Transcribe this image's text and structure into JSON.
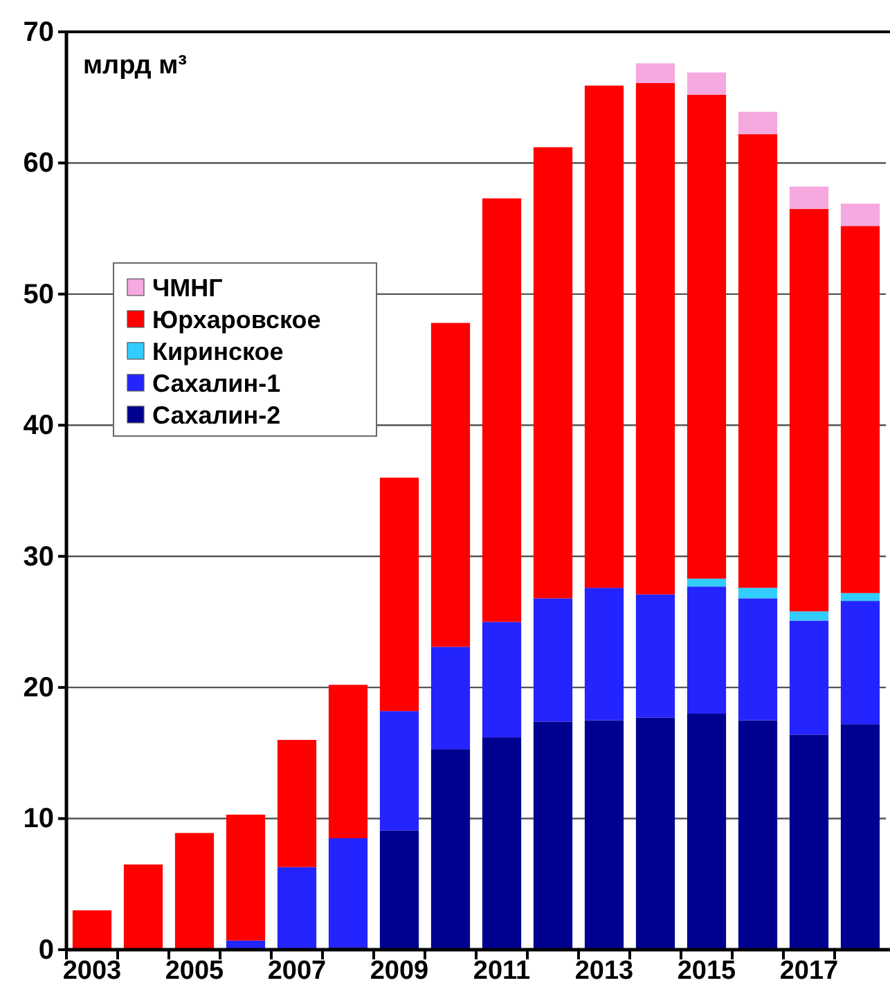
{
  "chart_data": {
    "type": "bar",
    "stacked": true,
    "ylabel": "млрд м³",
    "categories": [
      "2003",
      null,
      "2005",
      null,
      "2007",
      null,
      "2009",
      null,
      "2011",
      null,
      "2013",
      null,
      "2015",
      null,
      "2017",
      null
    ],
    "series": [
      {
        "name": "Сахалин-2",
        "color": "#000090",
        "values": [
          0,
          0,
          0,
          0,
          0,
          0.2,
          9.1,
          15.3,
          16.2,
          17.4,
          17.5,
          17.7,
          18.0,
          17.5,
          16.4,
          17.2
        ]
      },
      {
        "name": "Сахалин-1",
        "color": "#2424ff",
        "values": [
          0,
          0,
          0,
          0.7,
          6.3,
          8.3,
          9.1,
          7.8,
          8.8,
          9.4,
          10.1,
          9.4,
          9.7,
          9.3,
          8.7,
          9.4
        ]
      },
      {
        "name": "Киринское",
        "color": "#33ccff",
        "values": [
          0,
          0,
          0,
          0,
          0,
          0,
          0,
          0,
          0,
          0,
          0,
          0,
          0.6,
          0.8,
          0.7,
          0.6
        ]
      },
      {
        "name": "Юрхаровское",
        "color": "#ff0000",
        "values": [
          3.0,
          6.5,
          8.9,
          9.6,
          9.7,
          11.7,
          17.8,
          24.7,
          32.3,
          34.4,
          38.3,
          39.0,
          36.9,
          34.6,
          30.7,
          28.0
        ]
      },
      {
        "name": "ЧМНГ",
        "color": "#f5a9df",
        "values": [
          0,
          0,
          0,
          0,
          0,
          0,
          0,
          0,
          0,
          0,
          0,
          1.5,
          1.7,
          1.7,
          1.7,
          1.7
        ]
      }
    ],
    "ylim": [
      0,
      70
    ],
    "yticks": [
      0,
      10,
      20,
      30,
      40,
      50,
      60,
      70
    ],
    "grid": "y",
    "legend": "center left"
  }
}
